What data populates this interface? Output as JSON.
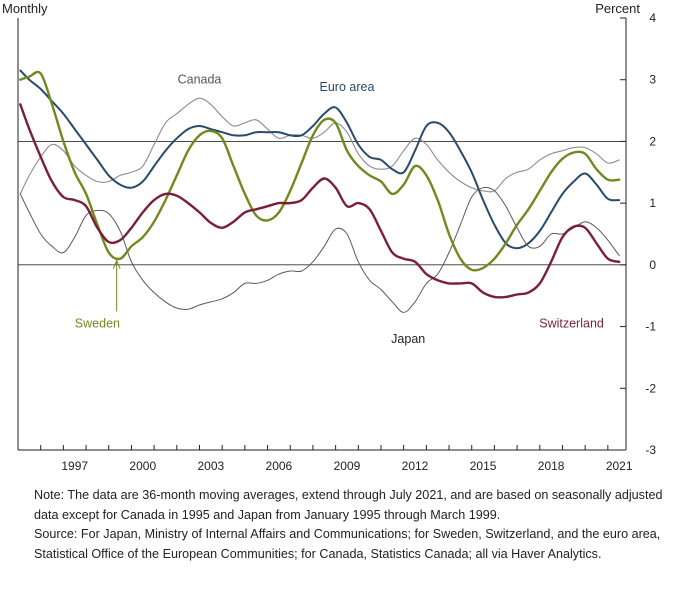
{
  "chart_data": {
    "type": "line",
    "left_axis_label": "Monthly",
    "right_axis_label": "Percent",
    "ylim": [
      -3,
      4
    ],
    "yticks": [
      4,
      3,
      2,
      1,
      0,
      -1,
      -2,
      -3
    ],
    "xlim": [
      1995.0,
      2021.8
    ],
    "xticks": [
      1997,
      2000,
      2003,
      2006,
      2009,
      2012,
      2015,
      2018,
      2021
    ],
    "reference_lines": [
      0,
      2
    ],
    "grid": false,
    "series": [
      {
        "name": "Canada",
        "color": "#8a8a96",
        "points": [
          [
            1995.1,
            1.15
          ],
          [
            1995.5,
            1.45
          ],
          [
            1996,
            1.75
          ],
          [
            1996.5,
            1.95
          ],
          [
            1997,
            1.85
          ],
          [
            1997.5,
            1.6
          ],
          [
            1998,
            1.45
          ],
          [
            1998.5,
            1.35
          ],
          [
            1999,
            1.35
          ],
          [
            1999.5,
            1.45
          ],
          [
            2000,
            1.5
          ],
          [
            2000.5,
            1.6
          ],
          [
            2001,
            1.95
          ],
          [
            2001.5,
            2.3
          ],
          [
            2002,
            2.45
          ],
          [
            2002.5,
            2.6
          ],
          [
            2003,
            2.7
          ],
          [
            2003.5,
            2.6
          ],
          [
            2004,
            2.4
          ],
          [
            2004.5,
            2.25
          ],
          [
            2005,
            2.3
          ],
          [
            2005.5,
            2.35
          ],
          [
            2006,
            2.2
          ],
          [
            2006.5,
            2.05
          ],
          [
            2007,
            2.1
          ],
          [
            2007.5,
            2.1
          ],
          [
            2008,
            2.05
          ],
          [
            2008.5,
            2.15
          ],
          [
            2009,
            2.3
          ],
          [
            2009.5,
            2.15
          ],
          [
            2010,
            1.8
          ],
          [
            2010.5,
            1.6
          ],
          [
            2011,
            1.55
          ],
          [
            2011.5,
            1.6
          ],
          [
            2012,
            1.85
          ],
          [
            2012.5,
            2.05
          ],
          [
            2013,
            1.95
          ],
          [
            2013.5,
            1.7
          ],
          [
            2014,
            1.5
          ],
          [
            2014.5,
            1.35
          ],
          [
            2015,
            1.25
          ],
          [
            2015.5,
            1.2
          ],
          [
            2016,
            1.2
          ],
          [
            2016.5,
            1.4
          ],
          [
            2017,
            1.5
          ],
          [
            2017.5,
            1.55
          ],
          [
            2018,
            1.7
          ],
          [
            2018.5,
            1.8
          ],
          [
            2019,
            1.85
          ],
          [
            2019.5,
            1.9
          ],
          [
            2020,
            1.9
          ],
          [
            2020.5,
            1.8
          ],
          [
            2021,
            1.65
          ],
          [
            2021.5,
            1.7
          ]
        ]
      },
      {
        "name": "Euro area",
        "color": "#2a4a6a",
        "points": [
          [
            1995.1,
            3.15
          ],
          [
            1995.5,
            3.0
          ],
          [
            1996,
            2.85
          ],
          [
            1996.5,
            2.65
          ],
          [
            1997,
            2.45
          ],
          [
            1997.5,
            2.2
          ],
          [
            1998,
            1.95
          ],
          [
            1998.5,
            1.7
          ],
          [
            1999,
            1.45
          ],
          [
            1999.5,
            1.3
          ],
          [
            2000,
            1.25
          ],
          [
            2000.5,
            1.35
          ],
          [
            2001,
            1.6
          ],
          [
            2001.5,
            1.85
          ],
          [
            2002,
            2.05
          ],
          [
            2002.5,
            2.2
          ],
          [
            2003,
            2.25
          ],
          [
            2003.5,
            2.2
          ],
          [
            2004,
            2.15
          ],
          [
            2004.5,
            2.1
          ],
          [
            2005,
            2.1
          ],
          [
            2005.5,
            2.15
          ],
          [
            2006,
            2.15
          ],
          [
            2006.5,
            2.15
          ],
          [
            2007,
            2.1
          ],
          [
            2007.5,
            2.1
          ],
          [
            2008,
            2.25
          ],
          [
            2008.5,
            2.45
          ],
          [
            2009,
            2.55
          ],
          [
            2009.5,
            2.3
          ],
          [
            2010,
            1.95
          ],
          [
            2010.5,
            1.75
          ],
          [
            2011,
            1.7
          ],
          [
            2011.5,
            1.55
          ],
          [
            2012,
            1.5
          ],
          [
            2012.5,
            1.85
          ],
          [
            2013,
            2.25
          ],
          [
            2013.5,
            2.3
          ],
          [
            2014,
            2.15
          ],
          [
            2014.5,
            1.85
          ],
          [
            2015,
            1.5
          ],
          [
            2015.5,
            1.05
          ],
          [
            2016,
            0.65
          ],
          [
            2016.5,
            0.35
          ],
          [
            2017,
            0.27
          ],
          [
            2017.5,
            0.35
          ],
          [
            2018,
            0.55
          ],
          [
            2018.5,
            0.85
          ],
          [
            2019,
            1.15
          ],
          [
            2019.5,
            1.35
          ],
          [
            2020,
            1.48
          ],
          [
            2020.5,
            1.3
          ],
          [
            2021,
            1.07
          ],
          [
            2021.5,
            1.05
          ]
        ]
      },
      {
        "name": "Japan",
        "color": "#5a5a5a",
        "points": [
          [
            1995.1,
            1.15
          ],
          [
            1995.5,
            0.85
          ],
          [
            1996,
            0.5
          ],
          [
            1996.5,
            0.3
          ],
          [
            1997,
            0.2
          ],
          [
            1997.5,
            0.45
          ],
          [
            1998,
            0.8
          ],
          [
            1998.5,
            0.88
          ],
          [
            1999,
            0.83
          ],
          [
            1999.5,
            0.55
          ],
          [
            2000,
            0.05
          ],
          [
            2000.5,
            -0.25
          ],
          [
            2001,
            -0.45
          ],
          [
            2001.5,
            -0.6
          ],
          [
            2002,
            -0.7
          ],
          [
            2002.5,
            -0.72
          ],
          [
            2003,
            -0.65
          ],
          [
            2003.5,
            -0.6
          ],
          [
            2004,
            -0.55
          ],
          [
            2004.5,
            -0.45
          ],
          [
            2005,
            -0.3
          ],
          [
            2005.5,
            -0.3
          ],
          [
            2006,
            -0.25
          ],
          [
            2006.5,
            -0.15
          ],
          [
            2007,
            -0.1
          ],
          [
            2007.5,
            -0.1
          ],
          [
            2008,
            0.05
          ],
          [
            2008.5,
            0.3
          ],
          [
            2009,
            0.58
          ],
          [
            2009.5,
            0.5
          ],
          [
            2010,
            0.05
          ],
          [
            2010.5,
            -0.25
          ],
          [
            2011,
            -0.4
          ],
          [
            2011.5,
            -0.6
          ],
          [
            2012,
            -0.77
          ],
          [
            2012.5,
            -0.6
          ],
          [
            2013,
            -0.3
          ],
          [
            2013.5,
            -0.15
          ],
          [
            2014,
            0.2
          ],
          [
            2014.5,
            0.65
          ],
          [
            2015,
            1.1
          ],
          [
            2015.5,
            1.25
          ],
          [
            2016,
            1.2
          ],
          [
            2016.5,
            0.95
          ],
          [
            2017,
            0.6
          ],
          [
            2017.5,
            0.3
          ],
          [
            2018,
            0.3
          ],
          [
            2018.5,
            0.5
          ],
          [
            2019,
            0.5
          ],
          [
            2019.5,
            0.6
          ],
          [
            2020,
            0.7
          ],
          [
            2020.5,
            0.6
          ],
          [
            2021,
            0.4
          ],
          [
            2021.5,
            0.15
          ]
        ]
      },
      {
        "name": "Sweden",
        "color": "#6f8a1e",
        "points": [
          [
            1995.1,
            3.0
          ],
          [
            1995.5,
            3.05
          ],
          [
            1996,
            3.1
          ],
          [
            1996.5,
            2.6
          ],
          [
            1997,
            2.0
          ],
          [
            1997.5,
            1.5
          ],
          [
            1998,
            1.15
          ],
          [
            1998.5,
            0.65
          ],
          [
            1999,
            0.2
          ],
          [
            1999.5,
            0.1
          ],
          [
            2000,
            0.3
          ],
          [
            2000.5,
            0.45
          ],
          [
            2001,
            0.7
          ],
          [
            2001.5,
            1.05
          ],
          [
            2002,
            1.45
          ],
          [
            2002.5,
            1.85
          ],
          [
            2003,
            2.1
          ],
          [
            2003.5,
            2.17
          ],
          [
            2004,
            2.05
          ],
          [
            2004.5,
            1.6
          ],
          [
            2005,
            1.15
          ],
          [
            2005.5,
            0.8
          ],
          [
            2006,
            0.72
          ],
          [
            2006.5,
            0.85
          ],
          [
            2007,
            1.2
          ],
          [
            2007.5,
            1.65
          ],
          [
            2008,
            2.1
          ],
          [
            2008.5,
            2.35
          ],
          [
            2009,
            2.3
          ],
          [
            2009.5,
            1.85
          ],
          [
            2010,
            1.6
          ],
          [
            2010.5,
            1.45
          ],
          [
            2011,
            1.35
          ],
          [
            2011.5,
            1.15
          ],
          [
            2012,
            1.3
          ],
          [
            2012.5,
            1.6
          ],
          [
            2013,
            1.45
          ],
          [
            2013.5,
            1.05
          ],
          [
            2014,
            0.5
          ],
          [
            2014.5,
            0.1
          ],
          [
            2015,
            -0.08
          ],
          [
            2015.5,
            -0.05
          ],
          [
            2016,
            0.1
          ],
          [
            2016.5,
            0.35
          ],
          [
            2017,
            0.65
          ],
          [
            2017.5,
            0.9
          ],
          [
            2018,
            1.2
          ],
          [
            2018.5,
            1.5
          ],
          [
            2019,
            1.72
          ],
          [
            2019.5,
            1.82
          ],
          [
            2020,
            1.8
          ],
          [
            2020.5,
            1.55
          ],
          [
            2021,
            1.38
          ],
          [
            2021.5,
            1.38
          ]
        ]
      },
      {
        "name": "Switzerland",
        "color": "#7a1f3a",
        "points": [
          [
            1995.1,
            2.6
          ],
          [
            1995.5,
            2.2
          ],
          [
            1996,
            1.75
          ],
          [
            1996.5,
            1.35
          ],
          [
            1997,
            1.1
          ],
          [
            1997.5,
            1.05
          ],
          [
            1998,
            0.95
          ],
          [
            1998.5,
            0.6
          ],
          [
            1999,
            0.37
          ],
          [
            1999.5,
            0.4
          ],
          [
            2000,
            0.6
          ],
          [
            2000.5,
            0.85
          ],
          [
            2001,
            1.05
          ],
          [
            2001.5,
            1.15
          ],
          [
            2002,
            1.12
          ],
          [
            2002.5,
            1.0
          ],
          [
            2003,
            0.85
          ],
          [
            2003.5,
            0.68
          ],
          [
            2004,
            0.6
          ],
          [
            2004.5,
            0.7
          ],
          [
            2005,
            0.85
          ],
          [
            2005.5,
            0.9
          ],
          [
            2006,
            0.95
          ],
          [
            2006.5,
            1.0
          ],
          [
            2007,
            1.0
          ],
          [
            2007.5,
            1.05
          ],
          [
            2008,
            1.25
          ],
          [
            2008.5,
            1.4
          ],
          [
            2009,
            1.25
          ],
          [
            2009.5,
            0.95
          ],
          [
            2010,
            1.0
          ],
          [
            2010.5,
            0.9
          ],
          [
            2011,
            0.55
          ],
          [
            2011.5,
            0.2
          ],
          [
            2012,
            0.1
          ],
          [
            2012.5,
            0.05
          ],
          [
            2013,
            -0.15
          ],
          [
            2013.5,
            -0.25
          ],
          [
            2014,
            -0.3
          ],
          [
            2014.5,
            -0.3
          ],
          [
            2015,
            -0.3
          ],
          [
            2015.5,
            -0.45
          ],
          [
            2016,
            -0.52
          ],
          [
            2016.5,
            -0.52
          ],
          [
            2017,
            -0.48
          ],
          [
            2017.5,
            -0.45
          ],
          [
            2018,
            -0.3
          ],
          [
            2018.5,
            0.05
          ],
          [
            2019,
            0.45
          ],
          [
            2019.5,
            0.62
          ],
          [
            2020,
            0.6
          ],
          [
            2020.5,
            0.35
          ],
          [
            2021,
            0.1
          ],
          [
            2021.5,
            0.05
          ]
        ]
      }
    ],
    "annotations": [
      {
        "text": "Canada",
        "x": 2003.0,
        "y": 3.0,
        "color": "#555555"
      },
      {
        "text": "Euro area",
        "x": 2009.5,
        "y": 2.88,
        "color": "#2a4a6a"
      },
      {
        "text": "Sweden",
        "x": 1998.5,
        "y": -0.95,
        "color": "#6f8a1e",
        "arrow_to": [
          1999.35,
          0.1
        ]
      },
      {
        "text": "Japan",
        "x": 2012.2,
        "y": -1.2,
        "color": "#222222"
      },
      {
        "text": "Switzerland",
        "x": 2019.4,
        "y": -0.95,
        "color": "#7a1f3a"
      }
    ]
  },
  "notes": {
    "note": "Note:  The data are 36-month moving averages, extend through July 2021, and are based on seasonally adjusted data except for Canada in 1995 and Japan from January 1995 through March 1999.",
    "source": "Source:  For Japan, Ministry of Internal Affairs and Communications; for Sweden, Switzerland, and the euro area, Statistical Office of the European Communities; for Canada, Statistics Canada; all via Haver Analytics."
  }
}
